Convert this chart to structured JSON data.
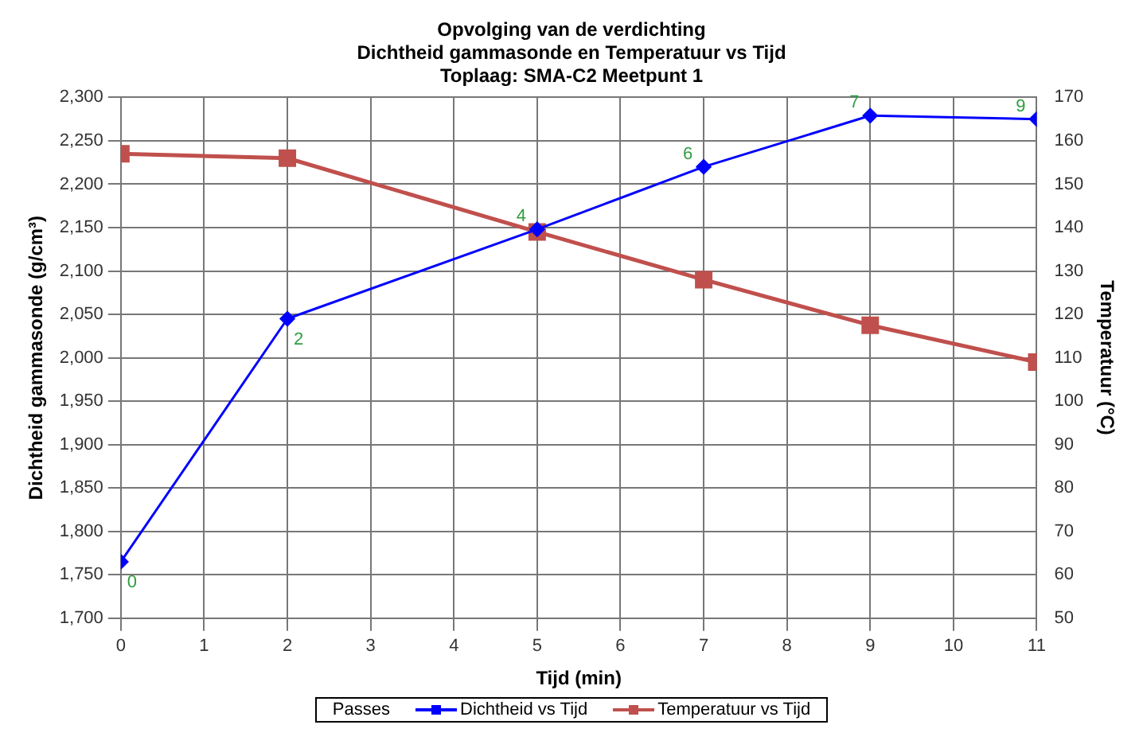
{
  "chart_data": {
    "type": "line",
    "title": "Opvolging van de verdichting\nDichtheid gammasonde en Temperatuur vs Tijd\nToplaag: SMA-C2 Meetpunt 1",
    "xlabel": "Tijd (min)",
    "ylabel": "Dichtheid gammasonde (g/cm³)",
    "y2label": "Temperatuur (°C)",
    "legend_title": "Passes",
    "legend": "bottom",
    "grid": true,
    "x": [
      0,
      2,
      5,
      7,
      9,
      11
    ],
    "series": [
      {
        "name": "Dichtheid vs Tijd",
        "color": "#0000ff",
        "marker": "diamond",
        "values": [
          1765,
          2045,
          2148,
          2220,
          2279,
          2275
        ]
      },
      {
        "name": "Temperatuur vs Tijd",
        "color": "#c0504d",
        "marker": "square",
        "axis": "y2",
        "values": [
          157,
          156,
          139,
          128,
          117.5,
          109
        ]
      }
    ],
    "xlim": [
      0,
      11
    ],
    "xticks": [
      0,
      1,
      2,
      3,
      4,
      5,
      6,
      7,
      8,
      9,
      10,
      11
    ],
    "ylim": [
      1700,
      2300
    ],
    "yticks": [
      {
        "value": 1700,
        "label": "1,700"
      },
      {
        "value": 1750,
        "label": "1,750"
      },
      {
        "value": 1800,
        "label": "1,800"
      },
      {
        "value": 1850,
        "label": "1,850"
      },
      {
        "value": 1900,
        "label": "1,900"
      },
      {
        "value": 1950,
        "label": "1,950"
      },
      {
        "value": 2000,
        "label": "2,000"
      },
      {
        "value": 2050,
        "label": "2,050"
      },
      {
        "value": 2100,
        "label": "2,100"
      },
      {
        "value": 2150,
        "label": "2,150"
      },
      {
        "value": 2200,
        "label": "2,200"
      },
      {
        "value": 2250,
        "label": "2,250"
      },
      {
        "value": 2300,
        "label": "2,300"
      }
    ],
    "y2lim": [
      50,
      170
    ],
    "y2ticks": [
      50,
      60,
      70,
      80,
      90,
      100,
      110,
      120,
      130,
      140,
      150,
      160,
      170
    ],
    "annotations": [
      {
        "text": "0",
        "x": 0,
        "y": 1765
      },
      {
        "text": "2",
        "x": 2,
        "y": 2045
      },
      {
        "text": "4",
        "x": 5,
        "y": 2148
      },
      {
        "text": "6",
        "x": 7,
        "y": 2220
      },
      {
        "text": "7",
        "x": 9,
        "y": 2279
      },
      {
        "text": "9",
        "x": 11,
        "y": 2275
      }
    ]
  }
}
